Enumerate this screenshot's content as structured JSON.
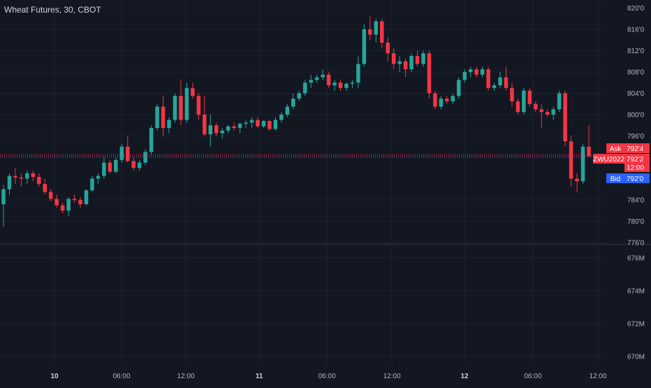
{
  "header": {
    "title": "Wheat Futures, 30, CBOT"
  },
  "colors": {
    "background": "#131722",
    "grid": "#1f2330",
    "up": "#26a69a",
    "down": "#f23645",
    "ask": "#f23645",
    "bid": "#2962ff",
    "axis_text": "#b2b5be",
    "separator": "#2a2e39"
  },
  "price_axis": {
    "ticks": [
      "820'0",
      "816'0",
      "812'0",
      "808'0",
      "804'0",
      "800'0",
      "796'0",
      "784'0",
      "780'0",
      "776'0"
    ]
  },
  "volume_axis": {
    "ticks": [
      "676M",
      "674M",
      "672M",
      "670M"
    ]
  },
  "time_axis": {
    "labels": [
      {
        "text": "10",
        "bold": true
      },
      {
        "text": "06:00",
        "bold": false
      },
      {
        "text": "12:00",
        "bold": false
      },
      {
        "text": "11",
        "bold": true
      },
      {
        "text": "06:00",
        "bold": false
      },
      {
        "text": "12:00",
        "bold": false
      },
      {
        "text": "12",
        "bold": true
      },
      {
        "text": "06:00",
        "bold": false
      },
      {
        "text": "12:00",
        "bold": false
      }
    ]
  },
  "price_tags": {
    "ask_label": "Ask",
    "ask_value": "792'4",
    "symbol_label": "ZWU2022",
    "last_value": "792'2",
    "countdown": "12:00",
    "bid_label": "Bid",
    "bid_value": "792'0"
  },
  "chart_data": {
    "type": "candlestick",
    "title": "Wheat Futures, 30, CBOT",
    "y_unit": "cents (eighths of a cent shown after apostrophe)",
    "ylim": [
      776,
      821.5
    ],
    "candles": [
      [
        783.2,
        786.8,
        779.0,
        786.0
      ],
      [
        786.0,
        789.0,
        785.0,
        788.5
      ],
      [
        788.5,
        790.0,
        787.0,
        788.2
      ],
      [
        788.2,
        789.0,
        786.5,
        788.0
      ],
      [
        788.0,
        789.5,
        787.0,
        789.0
      ],
      [
        789.0,
        789.5,
        787.5,
        788.3
      ],
      [
        788.3,
        789.0,
        786.5,
        787.0
      ],
      [
        787.0,
        788.0,
        785.0,
        785.5
      ],
      [
        785.5,
        786.0,
        783.8,
        784.2
      ],
      [
        784.2,
        785.0,
        782.5,
        783.0
      ],
      [
        783.0,
        783.5,
        781.5,
        782.0
      ],
      [
        782.0,
        784.5,
        781.0,
        784.2
      ],
      [
        784.2,
        785.0,
        783.5,
        784.0
      ],
      [
        784.0,
        784.5,
        782.5,
        783.2
      ],
      [
        783.2,
        786.0,
        783.0,
        785.8
      ],
      [
        785.8,
        788.5,
        785.5,
        788.0
      ],
      [
        788.0,
        789.0,
        787.0,
        788.5
      ],
      [
        788.5,
        792.0,
        788.0,
        791.0
      ],
      [
        791.0,
        791.5,
        789.0,
        789.3
      ],
      [
        789.3,
        792.0,
        789.0,
        791.5
      ],
      [
        791.5,
        794.5,
        791.0,
        794.0
      ],
      [
        794.0,
        796.0,
        791.0,
        791.3
      ],
      [
        791.3,
        792.0,
        789.5,
        790.0
      ],
      [
        790.0,
        791.5,
        789.5,
        791.0
      ],
      [
        791.0,
        793.5,
        790.5,
        793.0
      ],
      [
        793.0,
        798.0,
        792.5,
        797.5
      ],
      [
        797.5,
        802.0,
        797.0,
        801.5
      ],
      [
        801.5,
        803.5,
        796.0,
        797.5
      ],
      [
        797.5,
        799.5,
        796.5,
        799.0
      ],
      [
        799.0,
        804.0,
        798.5,
        803.5
      ],
      [
        803.5,
        806.5,
        798.0,
        799.0
      ],
      [
        799.0,
        806.0,
        798.5,
        805.0
      ],
      [
        805.0,
        806.0,
        803.0,
        803.5
      ],
      [
        803.5,
        804.0,
        799.0,
        800.0
      ],
      [
        800.0,
        803.5,
        796.0,
        796.3
      ],
      [
        796.3,
        800.0,
        794.0,
        798.0
      ],
      [
        798.0,
        798.5,
        796.0,
        796.5
      ],
      [
        796.5,
        797.5,
        795.5,
        797.0
      ],
      [
        797.0,
        798.0,
        796.5,
        797.8
      ],
      [
        797.8,
        798.5,
        797.0,
        797.5
      ],
      [
        797.5,
        798.5,
        796.5,
        798.3
      ],
      [
        798.3,
        799.0,
        797.5,
        798.5
      ],
      [
        798.5,
        799.5,
        797.5,
        799.0
      ],
      [
        799.0,
        799.5,
        797.5,
        797.8
      ],
      [
        797.8,
        799.0,
        797.5,
        798.8
      ],
      [
        798.8,
        799.0,
        797.0,
        797.3
      ],
      [
        797.3,
        799.5,
        797.0,
        799.0
      ],
      [
        799.0,
        800.5,
        798.5,
        800.0
      ],
      [
        800.0,
        802.0,
        799.5,
        801.5
      ],
      [
        801.5,
        804.0,
        801.0,
        803.0
      ],
      [
        803.0,
        804.5,
        802.5,
        804.0
      ],
      [
        804.0,
        806.5,
        803.5,
        806.0
      ],
      [
        806.0,
        807.5,
        805.0,
        806.5
      ],
      [
        806.5,
        807.5,
        806.0,
        807.0
      ],
      [
        807.0,
        808.5,
        806.5,
        807.5
      ],
      [
        807.5,
        808.0,
        805.0,
        805.5
      ],
      [
        805.5,
        806.5,
        804.5,
        806.0
      ],
      [
        806.0,
        806.5,
        804.5,
        805.0
      ],
      [
        805.0,
        806.0,
        804.5,
        805.8
      ],
      [
        805.8,
        806.5,
        805.0,
        806.0
      ],
      [
        806.0,
        811.0,
        805.0,
        809.5
      ],
      [
        809.5,
        817.0,
        809.0,
        816.0
      ],
      [
        816.0,
        818.5,
        814.0,
        815.0
      ],
      [
        815.0,
        818.0,
        813.5,
        817.5
      ],
      [
        817.5,
        818.0,
        812.5,
        813.5
      ],
      [
        813.5,
        814.5,
        810.0,
        811.5
      ],
      [
        811.5,
        812.5,
        808.5,
        809.5
      ],
      [
        809.5,
        811.0,
        808.0,
        810.0
      ],
      [
        810.0,
        810.5,
        807.0,
        808.5
      ],
      [
        808.5,
        811.5,
        808.0,
        811.0
      ],
      [
        811.0,
        812.0,
        809.0,
        809.5
      ],
      [
        809.5,
        812.0,
        809.0,
        811.5
      ],
      [
        811.5,
        812.0,
        803.0,
        804.0
      ],
      [
        804.0,
        804.5,
        801.0,
        801.5
      ],
      [
        801.5,
        803.5,
        801.0,
        803.0
      ],
      [
        803.0,
        803.5,
        802.0,
        802.5
      ],
      [
        802.5,
        804.0,
        802.0,
        803.5
      ],
      [
        803.5,
        807.0,
        803.0,
        806.5
      ],
      [
        806.5,
        808.5,
        806.0,
        808.0
      ],
      [
        808.0,
        809.0,
        807.0,
        808.5
      ],
      [
        808.5,
        809.0,
        807.0,
        807.5
      ],
      [
        807.5,
        809.0,
        807.0,
        808.5
      ],
      [
        808.5,
        809.0,
        804.5,
        805.0
      ],
      [
        805.0,
        806.0,
        804.5,
        805.5
      ],
      [
        805.5,
        808.0,
        805.0,
        807.0
      ],
      [
        807.0,
        809.0,
        804.5,
        805.0
      ],
      [
        805.0,
        806.0,
        801.5,
        802.5
      ],
      [
        802.5,
        803.0,
        800.0,
        800.5
      ],
      [
        800.5,
        805.0,
        800.0,
        804.5
      ],
      [
        804.5,
        805.0,
        801.5,
        802.0
      ],
      [
        802.0,
        802.5,
        800.5,
        801.0
      ],
      [
        801.0,
        802.0,
        797.5,
        800.5
      ],
      [
        800.5,
        801.0,
        799.5,
        800.0
      ],
      [
        800.0,
        801.5,
        799.0,
        801.0
      ],
      [
        801.0,
        804.5,
        800.5,
        804.0
      ],
      [
        804.0,
        804.5,
        794.0,
        795.0
      ],
      [
        795.0,
        796.0,
        786.5,
        788.0
      ],
      [
        788.0,
        789.0,
        785.5,
        787.5
      ],
      [
        787.5,
        794.5,
        787.0,
        794.0
      ],
      [
        794.0,
        798.0,
        792.0,
        792.2
      ]
    ]
  }
}
